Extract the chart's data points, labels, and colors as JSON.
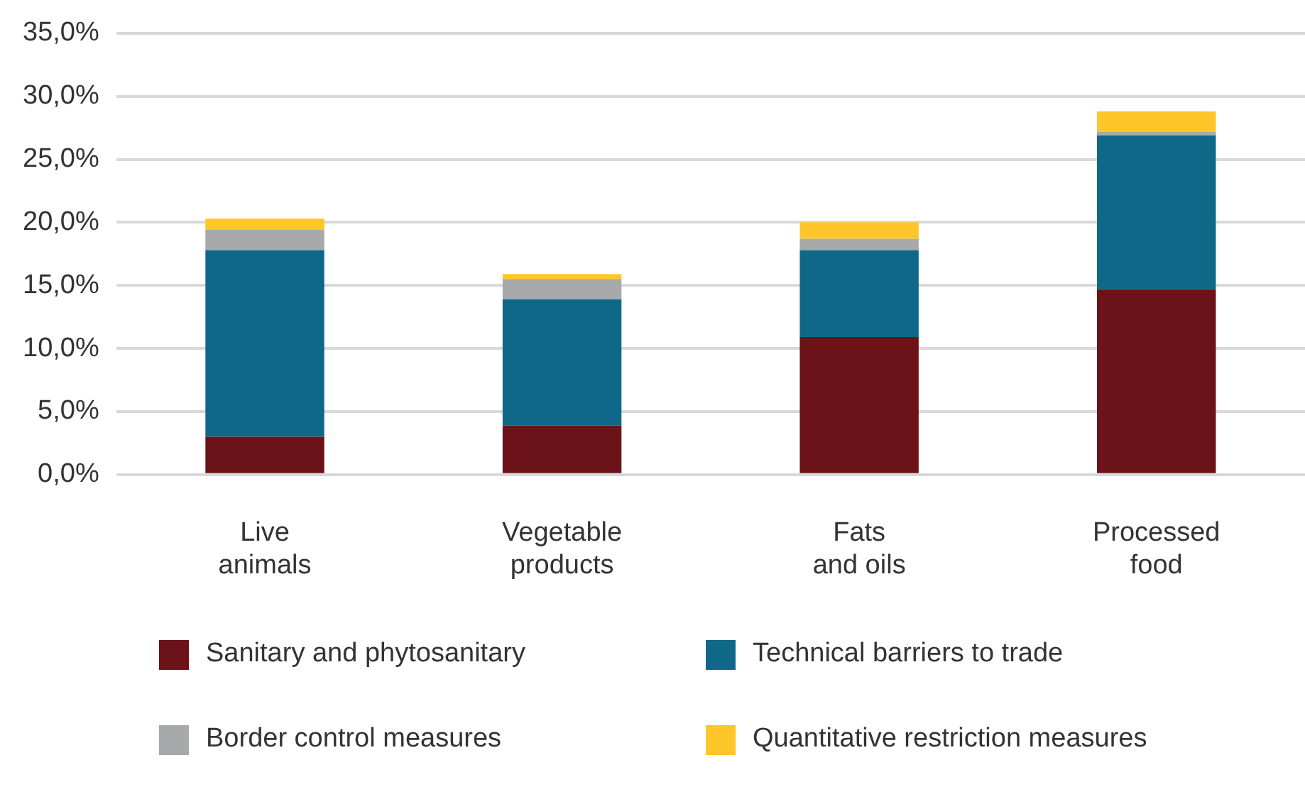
{
  "chart_data": {
    "type": "bar",
    "stacked": true,
    "categories": [
      "Live animals",
      "Vegetable products",
      "Fats and oils",
      "Processed food"
    ],
    "series": [
      {
        "name": "Sanitary and phytosanitary",
        "color": "#6b1318",
        "values": [
          3.0,
          3.9,
          10.9,
          14.7
        ]
      },
      {
        "name": "Technical barriers to trade",
        "color": "#106889",
        "values": [
          14.8,
          10.0,
          6.9,
          12.2
        ]
      },
      {
        "name": "Border control measures",
        "color": "#a7a9aa",
        "values": [
          1.6,
          1.6,
          0.9,
          0.3
        ]
      },
      {
        "name": "Quantitative restriction measures",
        "color": "#ffc629",
        "values": [
          0.9,
          0.4,
          1.3,
          1.6
        ]
      }
    ],
    "ylim": [
      0,
      35
    ],
    "yticks": [
      {
        "value": 0,
        "label": "0,0%"
      },
      {
        "value": 5,
        "label": "5,0%"
      },
      {
        "value": 10,
        "label": "10,0%"
      },
      {
        "value": 15,
        "label": "15,0%"
      },
      {
        "value": 20,
        "label": "20,0%"
      },
      {
        "value": 25,
        "label": "25,0%"
      },
      {
        "value": 30,
        "label": "30,0%"
      },
      {
        "value": 35,
        "label": "35,0%"
      }
    ],
    "grid": "y",
    "legend": "bottom"
  }
}
